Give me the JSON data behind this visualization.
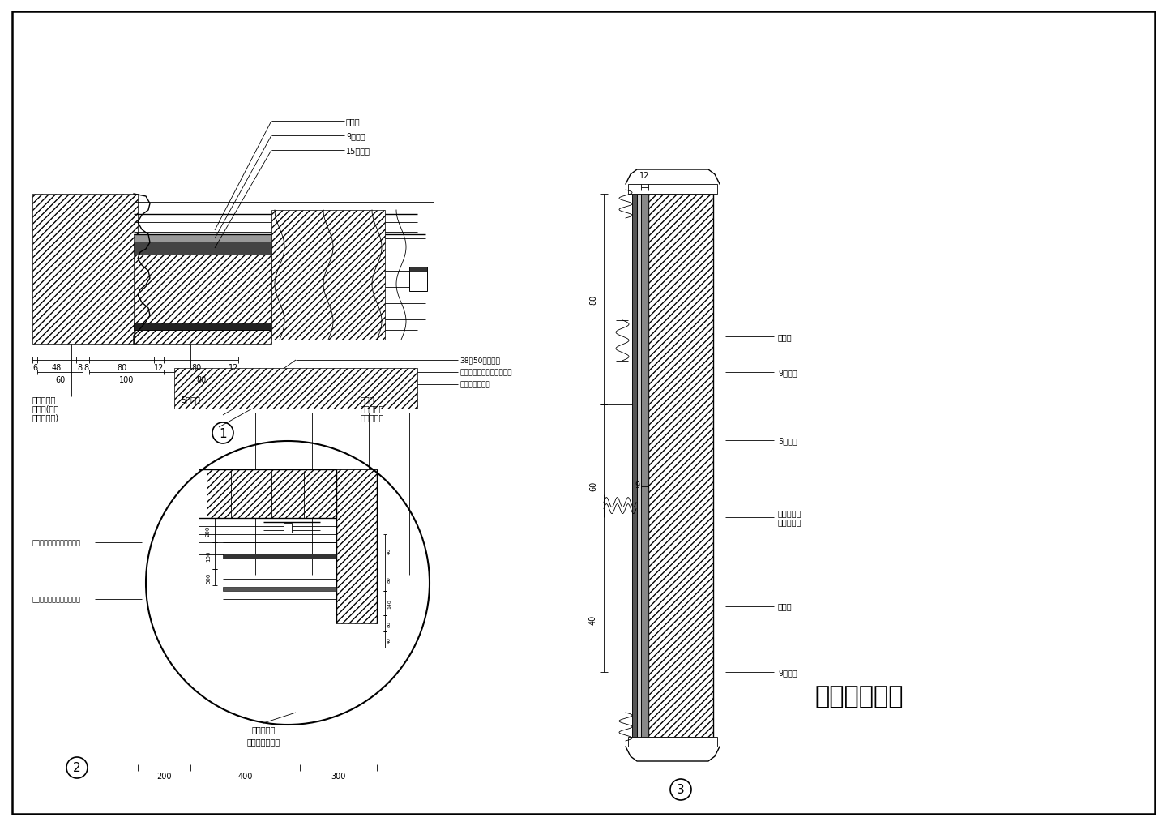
{
  "title": "大厅节点详图",
  "bg_color": "#ffffff",
  "line_color": "#000000",
  "annotations_diagram1": {
    "top_labels": [
      "实木线",
      "9厚夹板",
      "15厚夹板"
    ],
    "bottom_left_labels": [
      "红樟木饰面",
      "厚夹板(根据",
      "墙裙定厚度)"
    ],
    "bottom_mid_label": "5厚夹板",
    "bottom_right_labels": [
      "实木线",
      "红樟木饰面",
      "油红漆饰面"
    ],
    "dims_top": [
      "6",
      "48",
      "8",
      "8",
      "80",
      "12",
      "80",
      "12"
    ],
    "dims_bottom": [
      "60",
      "100",
      "80"
    ]
  },
  "annotations_diagram3": {
    "dim_top": "12",
    "dim_left": [
      "80",
      "60",
      "40"
    ],
    "right_labels": [
      "实木线",
      "9厚夹板",
      "5厚夹板",
      "红樟木饰面\n油红漆饰面",
      "实木线",
      "9厚夹板"
    ],
    "dim_inner": "9"
  },
  "annotations_diagram2": {
    "top_labels": [
      "38配50轻钢龙骨",
      "石膏顶插线白色乳胶漆饰面",
      "木龙骨防火处理"
    ],
    "left_labels": [
      "石膏顶插线白色乳胶漆饰面",
      "纸面石膏板白色乳胶漆饰面"
    ],
    "bottom_label1": "纸面石膏板",
    "bottom_label2": "白色乳胶漆饰面",
    "dims": [
      "200",
      "400",
      "300"
    ]
  },
  "font_size_tiny": 6,
  "font_size_small": 7,
  "font_size_medium": 9,
  "font_size_large": 11,
  "font_size_title": 22
}
